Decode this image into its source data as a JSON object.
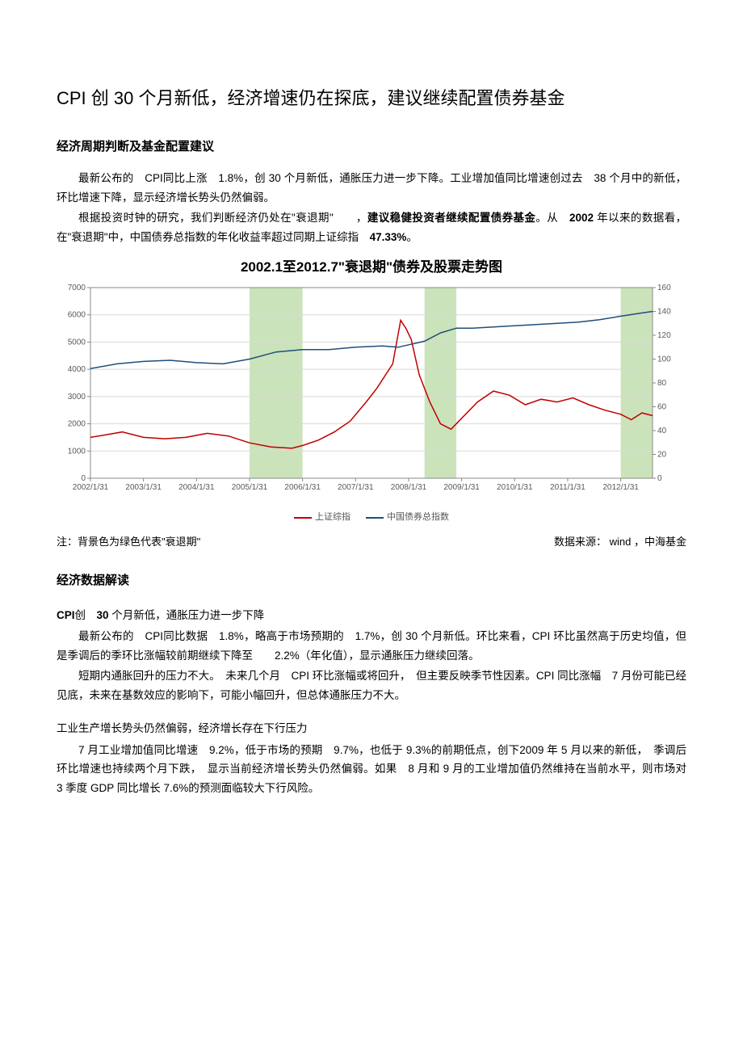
{
  "title": "CPI 创 30 个月新低，经济增速仍在探底，建议继续配置债券基金",
  "section1": {
    "heading": "经济周期判断及基金配置建议",
    "p1_a": "最新公布的　CPI同比上涨　1.8%，创 30 个月新低，通胀压力进一步下降。工业增加值同比增速创过去　38 个月中的新低，环比增速下降，显示经济增长势头仍然偏弱。",
    "p2_a": "根据投资时钟的研究，我们判断经济仍处在\"衰退期\"　　，",
    "p2_b": "建议稳健投资者继续配置债券基金",
    "p2_c": "。从　",
    "p2_d": "2002",
    "p2_e": " 年以来的数据看，在\"衰退期\"中，中国债券总指数的年化收益率超过同期上证综指　",
    "p2_f": "47.33%",
    "p2_g": "。"
  },
  "chart": {
    "title": "2002.1至2012.7\"衰退期\"债券及股票走势图",
    "bg_color": "#ffffff",
    "plot_border_color": "#888888",
    "grid_color": "#d9d9d9",
    "highlight_band_color": "#c5e0b3",
    "y_left": {
      "min": 0,
      "max": 7000,
      "step": 1000,
      "ticks": [
        0,
        1000,
        2000,
        3000,
        4000,
        5000,
        6000,
        7000
      ]
    },
    "y_right": {
      "min": 0,
      "max": 160,
      "step": 20,
      "ticks": [
        0,
        20,
        40,
        60,
        80,
        100,
        120,
        140,
        160
      ]
    },
    "x_labels": [
      "2002/1/31",
      "2003/1/31",
      "2004/1/31",
      "2005/1/31",
      "2006/1/31",
      "2007/1/31",
      "2008/1/31",
      "2009/1/31",
      "2010/1/31",
      "2011/1/31",
      "2012/1/31"
    ],
    "highlight_bands": [
      [
        3.0,
        4.0
      ],
      [
        6.3,
        6.9
      ],
      [
        10.0,
        10.6
      ]
    ],
    "series": [
      {
        "name": "上证综指",
        "axis": "left",
        "color": "#c00000",
        "width": 1.5,
        "points": [
          [
            0.0,
            1500
          ],
          [
            0.3,
            1600
          ],
          [
            0.6,
            1700
          ],
          [
            1.0,
            1500
          ],
          [
            1.4,
            1450
          ],
          [
            1.8,
            1500
          ],
          [
            2.2,
            1650
          ],
          [
            2.6,
            1550
          ],
          [
            3.0,
            1300
          ],
          [
            3.4,
            1150
          ],
          [
            3.8,
            1100
          ],
          [
            4.0,
            1200
          ],
          [
            4.3,
            1400
          ],
          [
            4.6,
            1700
          ],
          [
            4.9,
            2100
          ],
          [
            5.2,
            2800
          ],
          [
            5.4,
            3300
          ],
          [
            5.7,
            4200
          ],
          [
            5.85,
            5800
          ],
          [
            5.95,
            5500
          ],
          [
            6.05,
            5100
          ],
          [
            6.2,
            3800
          ],
          [
            6.4,
            2800
          ],
          [
            6.6,
            2000
          ],
          [
            6.8,
            1800
          ],
          [
            7.0,
            2200
          ],
          [
            7.3,
            2800
          ],
          [
            7.6,
            3200
          ],
          [
            7.9,
            3050
          ],
          [
            8.2,
            2700
          ],
          [
            8.5,
            2900
          ],
          [
            8.8,
            2800
          ],
          [
            9.1,
            2950
          ],
          [
            9.4,
            2700
          ],
          [
            9.7,
            2500
          ],
          [
            10.0,
            2350
          ],
          [
            10.2,
            2150
          ],
          [
            10.4,
            2400
          ],
          [
            10.6,
            2300
          ]
        ]
      },
      {
        "name": "中国债券总指数",
        "axis": "right",
        "color": "#1f4e79",
        "width": 1.5,
        "points": [
          [
            0.0,
            92
          ],
          [
            0.5,
            96
          ],
          [
            1.0,
            98
          ],
          [
            1.5,
            99
          ],
          [
            2.0,
            97
          ],
          [
            2.5,
            96
          ],
          [
            3.0,
            100
          ],
          [
            3.5,
            106
          ],
          [
            4.0,
            108
          ],
          [
            4.5,
            108
          ],
          [
            5.0,
            110
          ],
          [
            5.5,
            111
          ],
          [
            5.8,
            110
          ],
          [
            6.0,
            112
          ],
          [
            6.3,
            115
          ],
          [
            6.6,
            122
          ],
          [
            6.9,
            126
          ],
          [
            7.2,
            126
          ],
          [
            7.6,
            127
          ],
          [
            8.0,
            128
          ],
          [
            8.4,
            129
          ],
          [
            8.8,
            130
          ],
          [
            9.2,
            131
          ],
          [
            9.6,
            133
          ],
          [
            10.0,
            136
          ],
          [
            10.3,
            138
          ],
          [
            10.6,
            140
          ]
        ]
      }
    ],
    "legend": [
      {
        "label": "上证综指",
        "color": "#c00000"
      },
      {
        "label": "中国债券总指数",
        "color": "#1f4e79"
      }
    ],
    "axis_font_size": 10,
    "axis_text_color": "#595959"
  },
  "chart_note_left": "注：背景色为绿色代表\"衰退期\"",
  "chart_note_right": "数据来源： wind ，中海基金",
  "section2": {
    "heading": "经济数据解读",
    "sub1_a": "CPI",
    "sub1_b": "创　",
    "sub1_c": "30",
    "sub1_d": " 个月新低，通胀压力进一步下降",
    "s2p1": "最新公布的　CPI同比数据　1.8%，略高于市场预期的　1.7%，创 30 个月新低。环比来看，CPI 环比虽然高于历史均值，但是季调后的季环比涨幅较前期继续下降至　　2.2%（年化值），显示通胀压力继续回落。",
    "s2p2": "短期内通胀回升的压力不大。　未来几个月　CPI 环比涨幅或将回升，　但主要反映季节性因素。CPI 同比涨幅　7 月份可能已经见底，未来在基数效应的影响下，可能小幅回升，但总体通胀压力不大。",
    "sub2": "工业生产增长势头仍然偏弱，经济增长存在下行压力",
    "s2p3": "7 月工业增加值同比增速　9.2%，低于市场的预期　9.7%，也低于 9.3%的前期低点，创下2009 年 5 月以来的新低，　季调后环比增速也持续两个月下跌，　显示当前经济增长势头仍然偏弱。如果　8 月和 9 月的工业增加值仍然维持在当前水平，则市场对　　3 季度 GDP 同比增长 7.6%的预测面临较大下行风险。"
  }
}
